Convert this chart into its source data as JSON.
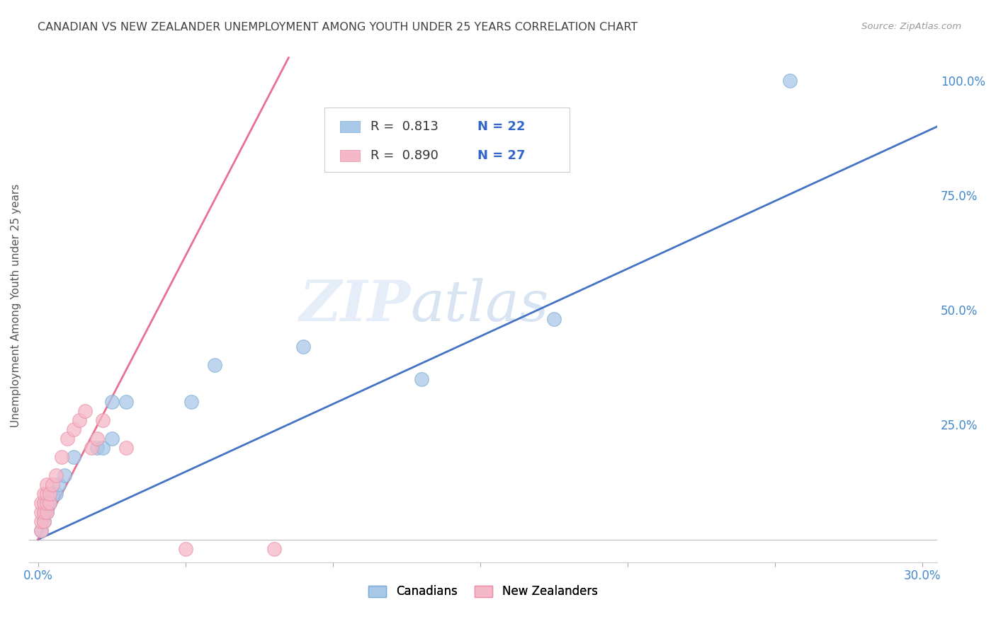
{
  "title": "CANADIAN VS NEW ZEALANDER UNEMPLOYMENT AMONG YOUTH UNDER 25 YEARS CORRELATION CHART",
  "source": "Source: ZipAtlas.com",
  "ylabel": "Unemployment Among Youth under 25 years",
  "xlim": [
    -0.003,
    0.305
  ],
  "ylim": [
    -0.05,
    1.07
  ],
  "xticks": [
    0.0,
    0.05,
    0.1,
    0.15,
    0.2,
    0.25,
    0.3
  ],
  "xticklabels": [
    "0.0%",
    "",
    "",
    "",
    "",
    "",
    "30.0%"
  ],
  "yticks_right": [
    0.25,
    0.5,
    0.75,
    1.0
  ],
  "yticklabels_right": [
    "25.0%",
    "50.0%",
    "75.0%",
    "100.0%"
  ],
  "watermark_zip": "ZIP",
  "watermark_atlas": "atlas",
  "canadian_color": "#a8c8e8",
  "canadian_edge_color": "#7badd4",
  "nz_color": "#f5b8c8",
  "nz_edge_color": "#e890a8",
  "canadian_line_color": "#4472c4",
  "nz_line_color": "#e87090",
  "legend_r_canadian": "R =  0.813",
  "legend_n_canadian": "N = 22",
  "legend_r_nz": "R =  0.890",
  "legend_n_nz": "N = 27",
  "canadian_x": [
    0.001,
    0.002,
    0.002,
    0.003,
    0.003,
    0.004,
    0.005,
    0.006,
    0.007,
    0.009,
    0.012,
    0.02,
    0.022,
    0.025,
    0.025,
    0.03,
    0.052,
    0.06,
    0.09,
    0.13,
    0.175,
    0.255
  ],
  "canadian_y": [
    0.02,
    0.04,
    0.06,
    0.06,
    0.08,
    0.08,
    0.1,
    0.1,
    0.12,
    0.14,
    0.18,
    0.2,
    0.2,
    0.22,
    0.3,
    0.3,
    0.3,
    0.38,
    0.42,
    0.35,
    0.48,
    1.0
  ],
  "nz_x": [
    0.001,
    0.001,
    0.001,
    0.001,
    0.002,
    0.002,
    0.002,
    0.002,
    0.003,
    0.003,
    0.003,
    0.003,
    0.004,
    0.004,
    0.005,
    0.006,
    0.008,
    0.01,
    0.012,
    0.014,
    0.016,
    0.018,
    0.02,
    0.022,
    0.03,
    0.05,
    0.08
  ],
  "nz_y": [
    0.02,
    0.04,
    0.06,
    0.08,
    0.04,
    0.06,
    0.08,
    0.1,
    0.06,
    0.08,
    0.1,
    0.12,
    0.08,
    0.1,
    0.12,
    0.14,
    0.18,
    0.22,
    0.24,
    0.26,
    0.28,
    0.2,
    0.22,
    0.26,
    0.2,
    -0.02,
    -0.02
  ],
  "nz_line_x0": 0.0,
  "nz_line_y0": 0.0,
  "nz_line_x1": 0.085,
  "nz_line_y1": 1.05,
  "ca_line_x0": 0.0,
  "ca_line_y0": 0.0,
  "ca_line_x1": 0.305,
  "ca_line_y1": 0.9,
  "background_color": "#ffffff",
  "grid_color": "#d8d8d8",
  "title_color": "#404040",
  "ylabel_color": "#555555",
  "tick_color": "#4488cc"
}
